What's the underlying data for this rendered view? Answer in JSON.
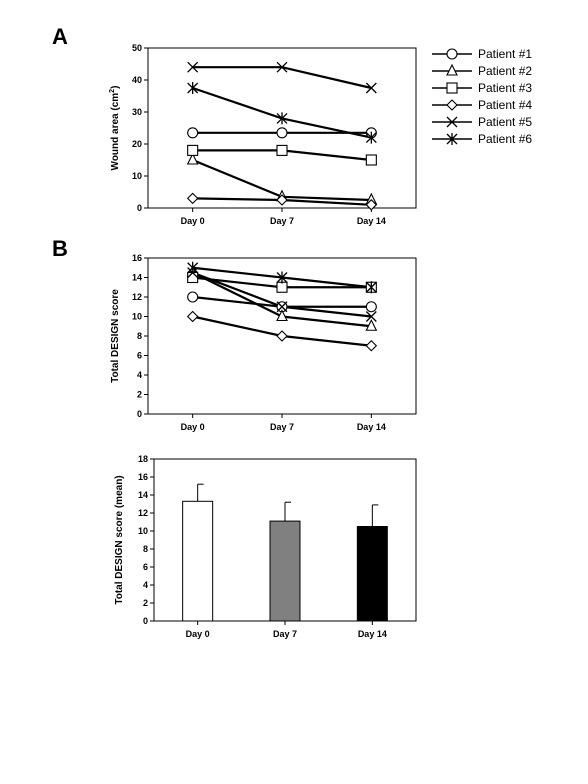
{
  "panels": {
    "a": "A",
    "b": "B"
  },
  "chart_data": [
    {
      "type": "line",
      "id": "wound",
      "categories": [
        "Day 0",
        "Day 7",
        "Day 14"
      ],
      "ylabel": "Wound area (cm²)",
      "ylabel_main": "Wound area (cm",
      "ylabel_sup": "2",
      "ylabel_end": ")",
      "ylim": [
        0,
        50
      ],
      "yticks": [
        0,
        10,
        20,
        30,
        40,
        50
      ],
      "legend": "right",
      "series": [
        {
          "name": "Patient #1",
          "marker": "circle",
          "values": [
            23.5,
            23.5,
            23.5
          ]
        },
        {
          "name": "Patient #2",
          "marker": "triangle",
          "values": [
            15,
            3.5,
            2.5
          ]
        },
        {
          "name": "Patient #3",
          "marker": "square",
          "values": [
            18,
            18,
            15
          ]
        },
        {
          "name": "Patient #4",
          "marker": "diamond",
          "values": [
            3,
            2.5,
            1
          ]
        },
        {
          "name": "Patient #5",
          "marker": "x",
          "values": [
            44,
            44,
            37.5
          ]
        },
        {
          "name": "Patient #6",
          "marker": "star",
          "values": [
            37.5,
            28,
            22
          ]
        }
      ]
    },
    {
      "type": "line",
      "id": "design",
      "categories": [
        "Day 0",
        "Day 7",
        "Day 14"
      ],
      "ylabel": "Total DESIGN score",
      "ylim": [
        0,
        16
      ],
      "yticks": [
        0,
        2,
        4,
        6,
        8,
        10,
        12,
        14,
        16
      ],
      "series": [
        {
          "marker": "circle",
          "values": [
            12,
            11,
            11
          ]
        },
        {
          "marker": "triangle",
          "values": [
            14.5,
            10,
            9
          ]
        },
        {
          "marker": "square",
          "values": [
            14,
            13,
            13
          ]
        },
        {
          "marker": "diamond",
          "values": [
            10,
            8,
            7
          ]
        },
        {
          "marker": "x",
          "values": [
            14.5,
            11,
            10
          ]
        },
        {
          "marker": "star",
          "values": [
            15,
            14,
            13
          ]
        }
      ]
    },
    {
      "type": "bar",
      "id": "mean",
      "categories": [
        "Day 0",
        "Day 7",
        "Day 14"
      ],
      "values": [
        13.3,
        11.1,
        10.5
      ],
      "errors": [
        1.9,
        2.1,
        2.4
      ],
      "colors": [
        "#ffffff",
        "#808080",
        "#000000"
      ],
      "ylabel": "Total DESIGN score (mean)",
      "ylim": [
        0,
        18
      ],
      "yticks": [
        0,
        2,
        4,
        6,
        8,
        10,
        12,
        14,
        16,
        18
      ]
    }
  ]
}
